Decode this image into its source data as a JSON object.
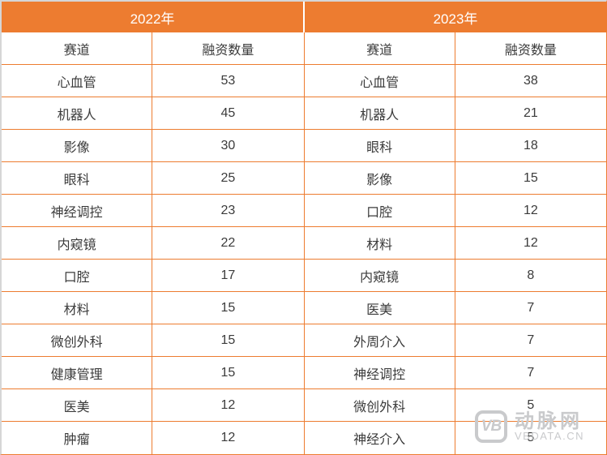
{
  "chart_data": [
    {
      "type": "table",
      "title": "2022年",
      "columns": [
        "赛道",
        "融资数量"
      ],
      "rows": [
        [
          "心血管",
          "53"
        ],
        [
          "机器人",
          "45"
        ],
        [
          "影像",
          "30"
        ],
        [
          "眼科",
          "25"
        ],
        [
          "神经调控",
          "23"
        ],
        [
          "内窥镜",
          "22"
        ],
        [
          "口腔",
          "17"
        ],
        [
          "材料",
          "15"
        ],
        [
          "微创外科",
          "15"
        ],
        [
          "健康管理",
          "15"
        ],
        [
          "医美",
          "12"
        ],
        [
          "肿瘤",
          "12"
        ]
      ]
    },
    {
      "type": "table",
      "title": "2023年",
      "columns": [
        "赛道",
        "融资数量"
      ],
      "rows": [
        [
          "心血管",
          "38"
        ],
        [
          "机器人",
          "21"
        ],
        [
          "眼科",
          "18"
        ],
        [
          "影像",
          "15"
        ],
        [
          "口腔",
          "12"
        ],
        [
          "材料",
          "12"
        ],
        [
          "内窥镜",
          "8"
        ],
        [
          "医美",
          "7"
        ],
        [
          "外周介入",
          "7"
        ],
        [
          "神经调控",
          "7"
        ],
        [
          "微创外科",
          "5"
        ],
        [
          "神经介入",
          "5"
        ]
      ]
    }
  ],
  "watermark": {
    "logo_text": "VB",
    "brand": "动脉网",
    "site": "VBDATA.CN"
  },
  "colors": {
    "accent": "#ED7C30",
    "gray_border": "#D6D6D6",
    "text": "#3B3B3B",
    "header_text": "#FFFFFF",
    "watermark": "#C9CACC"
  }
}
